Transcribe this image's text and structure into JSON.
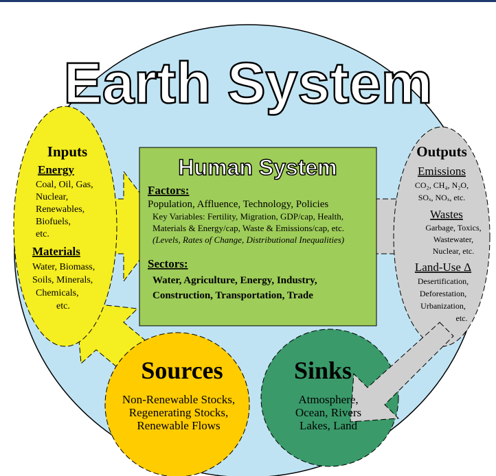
{
  "title": "Earth System",
  "human": {
    "title": "Human System",
    "factors_heading": "Factors:",
    "factors": "Population, Affluence, Technology, Policies",
    "key_variables": [
      "Key Variables: Fertility, Migration, GDP/cap, Health,",
      "Materials & Energy/cap, Waste & Emissions/cap, etc.",
      "(Levels, Rates of Change, Distributional Inequalities)"
    ],
    "sectors_heading": "Sectors:",
    "sectors": [
      "Water, Agriculture, Energy, Industry,",
      "Construction, Transportation, Trade"
    ]
  },
  "inputs": {
    "title": "Inputs",
    "energy_heading": "Energy",
    "energy": [
      "Coal, Oil, Gas,",
      "Nuclear,",
      "Renewables,",
      "Biofuels,",
      "etc."
    ],
    "materials_heading": "Materials",
    "materials": [
      "Water, Biomass,",
      "Soils, Minerals,",
      "Chemicals,",
      "etc."
    ]
  },
  "outputs": {
    "title": "Outputs",
    "emissions_heading": "Emissions",
    "emissions": [
      "CO₂, CH₄, N₂O,",
      "SOₓ, NOₓ, etc."
    ],
    "wastes_heading": "Wastes",
    "wastes": [
      "Garbage, Toxics,",
      "Wastewater,",
      "Nuclear, etc."
    ],
    "land_use_heading": "Land-Use Δ",
    "land_use": [
      "Desertification,",
      "Deforestation,",
      "Urbanization,",
      "etc."
    ]
  },
  "sources": {
    "title": "Sources",
    "items": [
      "Non-Renewable Stocks,",
      "Regenerating Stocks,",
      "Renewable Flows"
    ]
  },
  "sinks": {
    "title": "Sinks",
    "items": [
      "Atmosphere,",
      "Ocean, Rivers",
      "Lakes, Land"
    ]
  }
}
